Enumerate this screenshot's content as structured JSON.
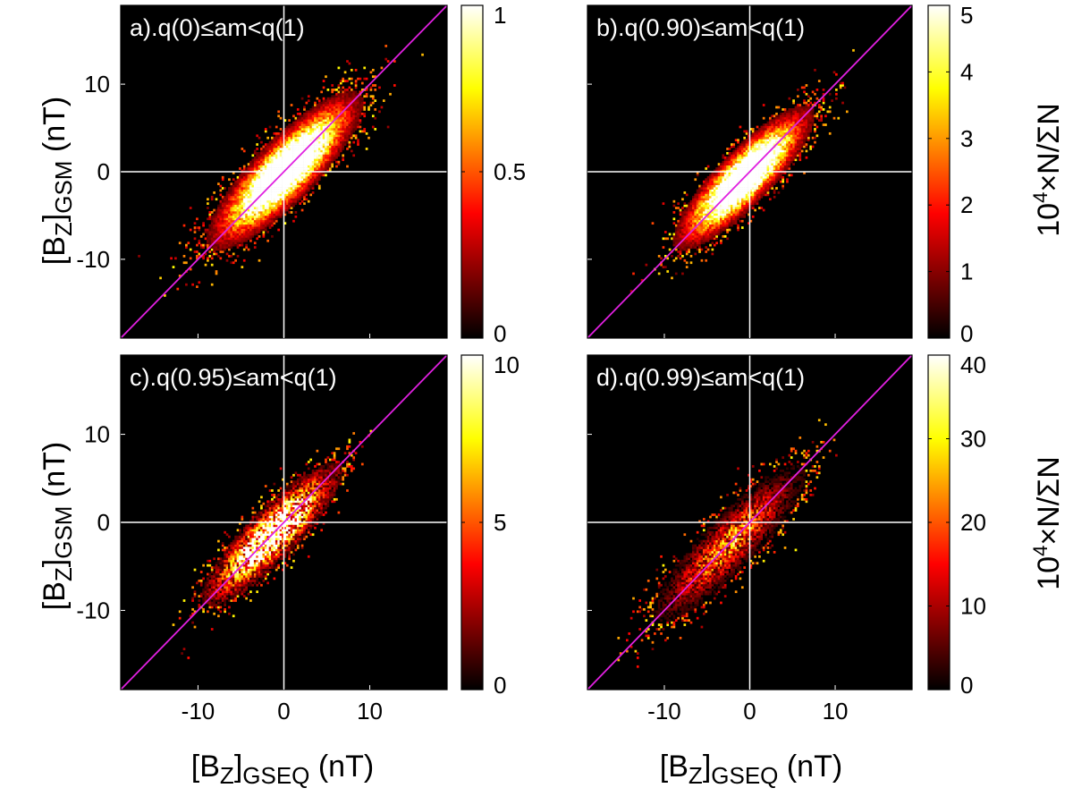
{
  "figure": {
    "y_axis_label": {
      "main": "[B",
      "sub1": "Z",
      "mid": "]",
      "sub2": "GSM",
      "unit": " (nT)"
    },
    "x_axis_label": {
      "main": "[B",
      "sub1": "Z",
      "mid": "]",
      "sub2": "GSEQ",
      "unit": " (nT)"
    },
    "colorbar_label": {
      "base": "10",
      "exp": "4",
      "rest": "×N/ΣN"
    }
  },
  "chart_data": [
    {
      "type": "heatmap",
      "panel_label": "a).q(0)≤am<q(1)",
      "xlim": [
        -19,
        19
      ],
      "ylim": [
        -19,
        19
      ],
      "xticks": [
        -10,
        0,
        10
      ],
      "yticks": [
        -10,
        0,
        10
      ],
      "xtick_labels": [
        "-10",
        "0",
        "10"
      ],
      "ytick_labels": [
        "-10",
        "0",
        "10"
      ],
      "show_xtick_labels": false,
      "show_ytick_labels": true,
      "colorbar": {
        "range": [
          0,
          1
        ],
        "ticks": [
          0,
          0.5,
          1
        ],
        "tick_labels": [
          "0",
          "0.5",
          "1"
        ],
        "colormap": "hot"
      },
      "distribution": {
        "center": [
          0,
          0
        ],
        "major_axis_slope": 1,
        "sigma_major": 5.5,
        "sigma_minor": 1.6,
        "peak_density_relative": 1.0,
        "saturated_core": true
      },
      "reference_lines": {
        "y_equals_x": true,
        "y_equals_x_color": "#e020e0",
        "x0_line": true,
        "y0_line": true,
        "zero_line_color": "#ffffff"
      }
    },
    {
      "type": "heatmap",
      "panel_label": "b).q(0.90)≤am<q(1)",
      "xlim": [
        -19,
        19
      ],
      "ylim": [
        -19,
        19
      ],
      "xticks": [
        -10,
        0,
        10
      ],
      "yticks": [
        -10,
        0,
        10
      ],
      "xtick_labels": [
        "-10",
        "0",
        "10"
      ],
      "ytick_labels": [
        "-10",
        "0",
        "10"
      ],
      "show_xtick_labels": false,
      "show_ytick_labels": false,
      "colorbar": {
        "range": [
          0,
          5
        ],
        "ticks": [
          0,
          1,
          2,
          3,
          4,
          5
        ],
        "tick_labels": [
          "0",
          "1",
          "2",
          "3",
          "4",
          "5"
        ],
        "colormap": "hot"
      },
      "distribution": {
        "center": [
          -0.8,
          -0.8
        ],
        "major_axis_slope": 1,
        "sigma_major": 5.0,
        "sigma_minor": 1.4,
        "peak_density_relative": 0.85,
        "saturated_core": true
      },
      "reference_lines": {
        "y_equals_x": true,
        "y_equals_x_color": "#e020e0",
        "x0_line": true,
        "y0_line": true,
        "zero_line_color": "#ffffff"
      }
    },
    {
      "type": "heatmap",
      "panel_label": "c).q(0.95)≤am<q(1)",
      "xlim": [
        -19,
        19
      ],
      "ylim": [
        -19,
        19
      ],
      "xticks": [
        -10,
        0,
        10
      ],
      "yticks": [
        -10,
        0,
        10
      ],
      "xtick_labels": [
        "-10",
        "0",
        "10"
      ],
      "ytick_labels": [
        "-10",
        "0",
        "10"
      ],
      "show_xtick_labels": true,
      "show_ytick_labels": true,
      "colorbar": {
        "range": [
          0,
          10
        ],
        "ticks": [
          0,
          5,
          10
        ],
        "tick_labels": [
          "0",
          "5",
          "10"
        ],
        "colormap": "hot"
      },
      "distribution": {
        "center": [
          -1.5,
          -1.5
        ],
        "major_axis_slope": 1,
        "sigma_major": 5.0,
        "sigma_minor": 1.3,
        "peak_density_relative": 0.7,
        "saturated_core": false
      },
      "reference_lines": {
        "y_equals_x": true,
        "y_equals_x_color": "#e020e0",
        "x0_line": true,
        "y0_line": true,
        "zero_line_color": "#ffffff"
      }
    },
    {
      "type": "heatmap",
      "panel_label": "d).q(0.99)≤am<q(1)",
      "xlim": [
        -19,
        19
      ],
      "ylim": [
        -19,
        19
      ],
      "xticks": [
        -10,
        0,
        10
      ],
      "yticks": [
        -10,
        0,
        10
      ],
      "xtick_labels": [
        "-10",
        "0",
        "10"
      ],
      "ytick_labels": [
        "-10",
        "0",
        "10"
      ],
      "show_xtick_labels": true,
      "show_ytick_labels": false,
      "colorbar": {
        "range": [
          0,
          40
        ],
        "ticks": [
          0,
          10,
          20,
          30,
          40
        ],
        "tick_labels": [
          "0",
          "10",
          "20",
          "30",
          "40"
        ],
        "colormap": "hot"
      },
      "distribution": {
        "center": [
          -2.5,
          -2.5
        ],
        "major_axis_slope": 1,
        "sigma_major": 5.5,
        "sigma_minor": 1.4,
        "peak_density_relative": 0.3,
        "saturated_core": false
      },
      "reference_lines": {
        "y_equals_x": true,
        "y_equals_x_color": "#e020e0",
        "x0_line": true,
        "y0_line": true,
        "zero_line_color": "#ffffff"
      }
    }
  ]
}
